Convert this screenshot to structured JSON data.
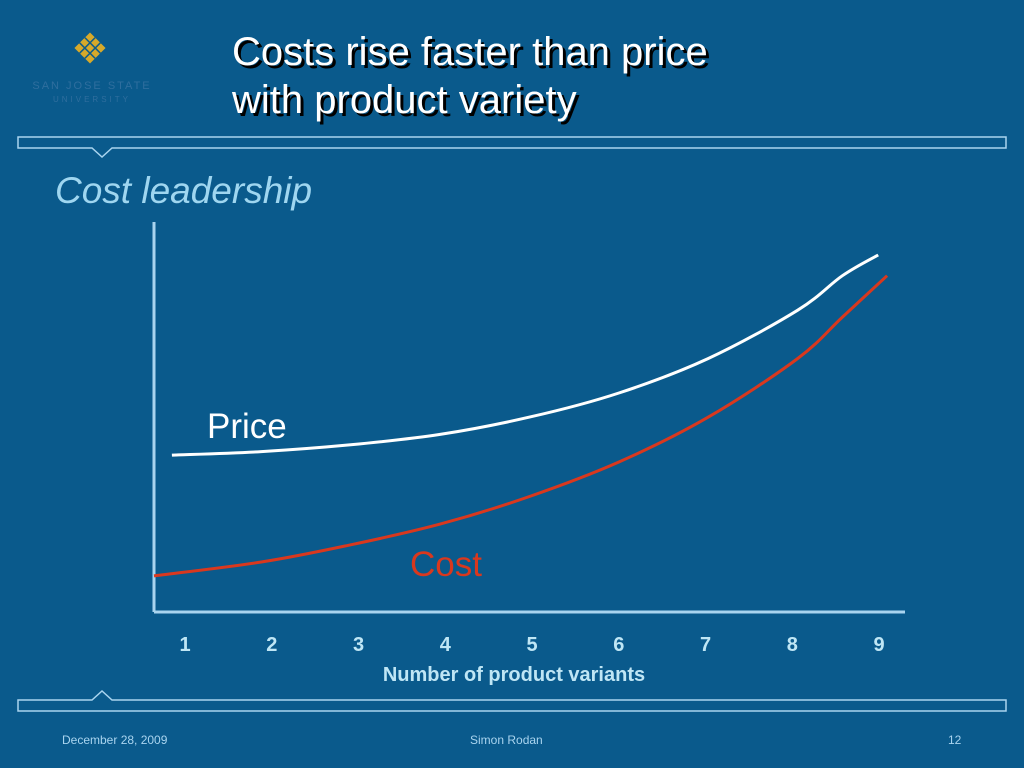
{
  "logo": {
    "line1": "SAN JOSE STATE",
    "line2": "UNIVERSITY"
  },
  "slide": {
    "title_line1": "Costs rise faster than price",
    "title_line2": "with product variety",
    "subtitle": "Cost leadership"
  },
  "colors": {
    "background": "#0a5a8c",
    "price_line": "#ffffff",
    "cost_line": "#d9381e",
    "tick_labels": "#bfe6f5",
    "frame_lines": "#a9d4ef"
  },
  "chart_data": {
    "type": "line",
    "xlabel": "Number of product variants",
    "ylabel": "",
    "x_ticks": [
      "1",
      "2",
      "3",
      "4",
      "5",
      "6",
      "7",
      "8",
      "9"
    ],
    "xlim": [
      0.8,
      9.2
    ],
    "ylim": [
      0,
      100
    ],
    "grid": false,
    "series": [
      {
        "name": "Price",
        "x": [
          1,
          2,
          3,
          4,
          5,
          6,
          7,
          8,
          8.5,
          8.9
        ],
        "y": [
          42,
          43,
          45,
          48,
          53,
          60,
          70,
          84,
          94,
          100
        ]
      },
      {
        "name": "Cost",
        "x": [
          0.8,
          2,
          3,
          4,
          5,
          6,
          7,
          8,
          8.5,
          9.0
        ],
        "y": [
          7,
          11,
          16,
          22,
          30,
          40,
          53,
          70,
          82,
          94
        ]
      }
    ]
  },
  "footer": {
    "date": "December 28, 2009",
    "author": "Simon Rodan",
    "page": "12"
  }
}
